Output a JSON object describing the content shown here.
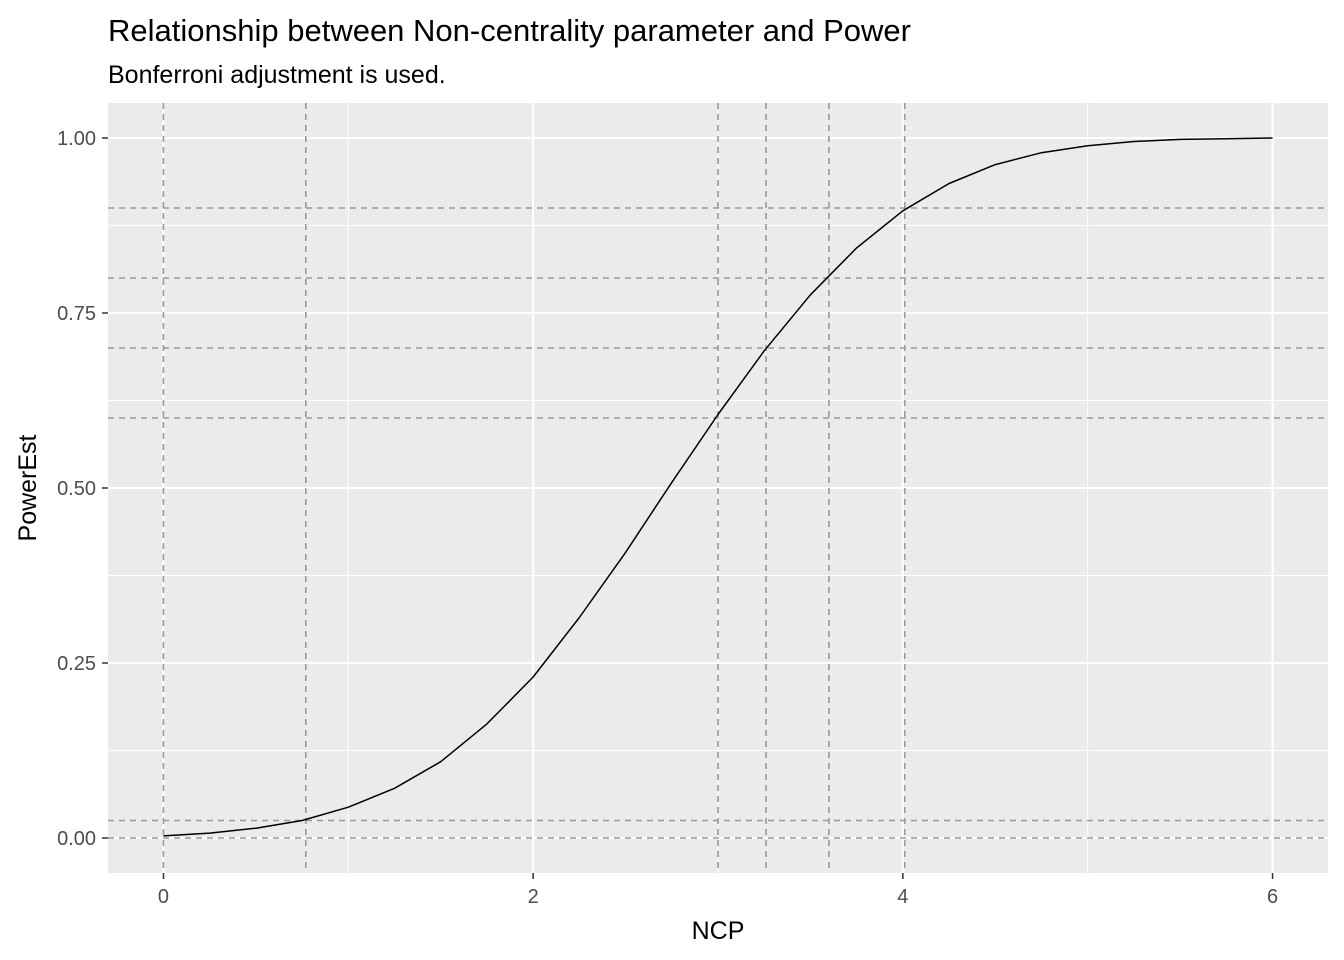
{
  "chart_data": {
    "type": "line",
    "title": "Relationship between Non-centrality parameter and Power",
    "subtitle": "Bonferroni adjustment is used.",
    "xlabel": "NCP",
    "ylabel": "PowerEst",
    "xlim": [
      -0.3,
      6.3
    ],
    "ylim": [
      -0.05,
      1.05
    ],
    "x_ticks": [
      0,
      2,
      4,
      6
    ],
    "x_tick_labels": [
      "0",
      "2",
      "4",
      "6"
    ],
    "y_ticks": [
      0,
      0.25,
      0.5,
      0.75,
      1
    ],
    "y_tick_labels": [
      "0.00",
      "0.25",
      "0.50",
      "0.75",
      "1.00"
    ],
    "x_minor_ticks": [
      1,
      3,
      5
    ],
    "y_minor_ticks": [
      0.125,
      0.375,
      0.625,
      0.875
    ],
    "grid": true,
    "background_color": "#ebebeb",
    "line_color": "#000000",
    "reference_line_color": "#999999",
    "vlines": [
      0,
      0.77,
      3.0,
      3.26,
      3.6,
      4.01
    ],
    "hlines": [
      0,
      0.025,
      0.6,
      0.7,
      0.8,
      0.9
    ],
    "series": [
      {
        "x": [
          0,
          0.25,
          0.5,
          0.75,
          1.0,
          1.25,
          1.5,
          1.75,
          2.0,
          2.25,
          2.5,
          2.75,
          3.0,
          3.25,
          3.5,
          3.75,
          4.0,
          4.25,
          4.5,
          4.75,
          5.0,
          5.25,
          5.5,
          5.75,
          6.0
        ],
        "y": [
          0.003,
          0.007,
          0.014,
          0.025,
          0.044,
          0.071,
          0.109,
          0.163,
          0.23,
          0.315,
          0.408,
          0.508,
          0.605,
          0.696,
          0.776,
          0.843,
          0.896,
          0.935,
          0.962,
          0.979,
          0.989,
          0.995,
          0.998,
          0.999,
          1.0
        ]
      }
    ]
  }
}
